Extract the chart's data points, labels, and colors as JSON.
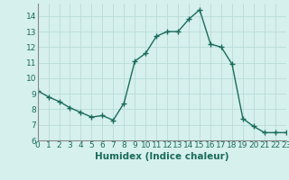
{
  "x": [
    0,
    1,
    2,
    3,
    4,
    5,
    6,
    7,
    8,
    9,
    10,
    11,
    12,
    13,
    14,
    15,
    16,
    17,
    18,
    19,
    20,
    21,
    22,
    23
  ],
  "y": [
    9.2,
    8.8,
    8.5,
    8.1,
    7.8,
    7.5,
    7.6,
    7.3,
    8.4,
    11.1,
    11.6,
    12.7,
    13.0,
    13.0,
    13.8,
    14.4,
    12.2,
    12.0,
    10.9,
    7.4,
    6.9,
    6.5,
    6.5,
    6.5
  ],
  "line_color": "#1a6b5a",
  "marker": "+",
  "marker_size": 4,
  "bg_color": "#d6f0ee",
  "grid_color": "#b8dbd8",
  "xlabel": "Humidex (Indice chaleur)",
  "ylim": [
    6,
    14.8
  ],
  "xlim": [
    0,
    23
  ],
  "yticks": [
    6,
    7,
    8,
    9,
    10,
    11,
    12,
    13,
    14
  ],
  "xticks": [
    0,
    1,
    2,
    3,
    4,
    5,
    6,
    7,
    8,
    9,
    10,
    11,
    12,
    13,
    14,
    15,
    16,
    17,
    18,
    19,
    20,
    21,
    22,
    23
  ],
  "xlabel_fontsize": 7.5,
  "tick_fontsize": 6.5,
  "line_width": 1.0,
  "marker_color": "#1a6b5a"
}
